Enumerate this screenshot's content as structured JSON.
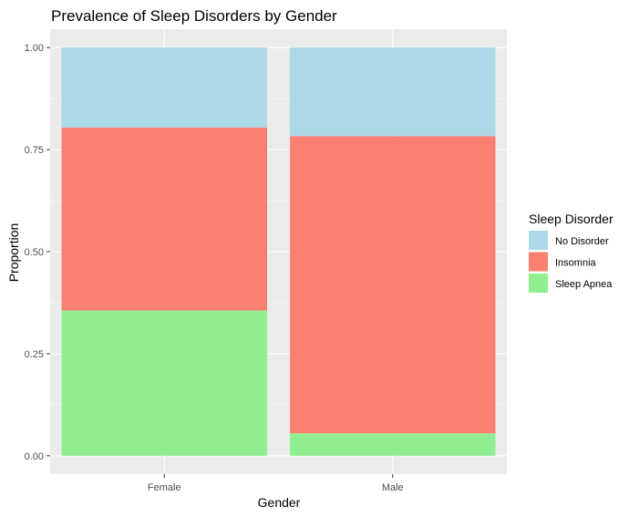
{
  "chart_data": {
    "type": "bar",
    "stacked": true,
    "title": "Prevalence of Sleep Disorders by Gender",
    "xlabel": "Gender",
    "ylabel": "Proportion",
    "categories": [
      "Female",
      "Male"
    ],
    "ylim": [
      0,
      1
    ],
    "yticks": [
      "0.00",
      "0.25",
      "0.50",
      "0.75",
      "1.00"
    ],
    "ytick_values": [
      0,
      0.25,
      0.5,
      0.75,
      1.0
    ],
    "grid": true,
    "legend": {
      "title": "Sleep Disorder",
      "position": "right"
    },
    "series": [
      {
        "name": "Sleep Apnea",
        "color": "#90EE90",
        "values": [
          0.356,
          0.055
        ]
      },
      {
        "name": "Insomnia",
        "color": "#FA8072",
        "values": [
          0.448,
          0.728
        ]
      },
      {
        "name": "No Disorder",
        "color": "#ADD8E6",
        "values": [
          0.196,
          0.217
        ]
      }
    ],
    "legend_order": [
      "No Disorder",
      "Insomnia",
      "Sleep Apnea"
    ]
  }
}
